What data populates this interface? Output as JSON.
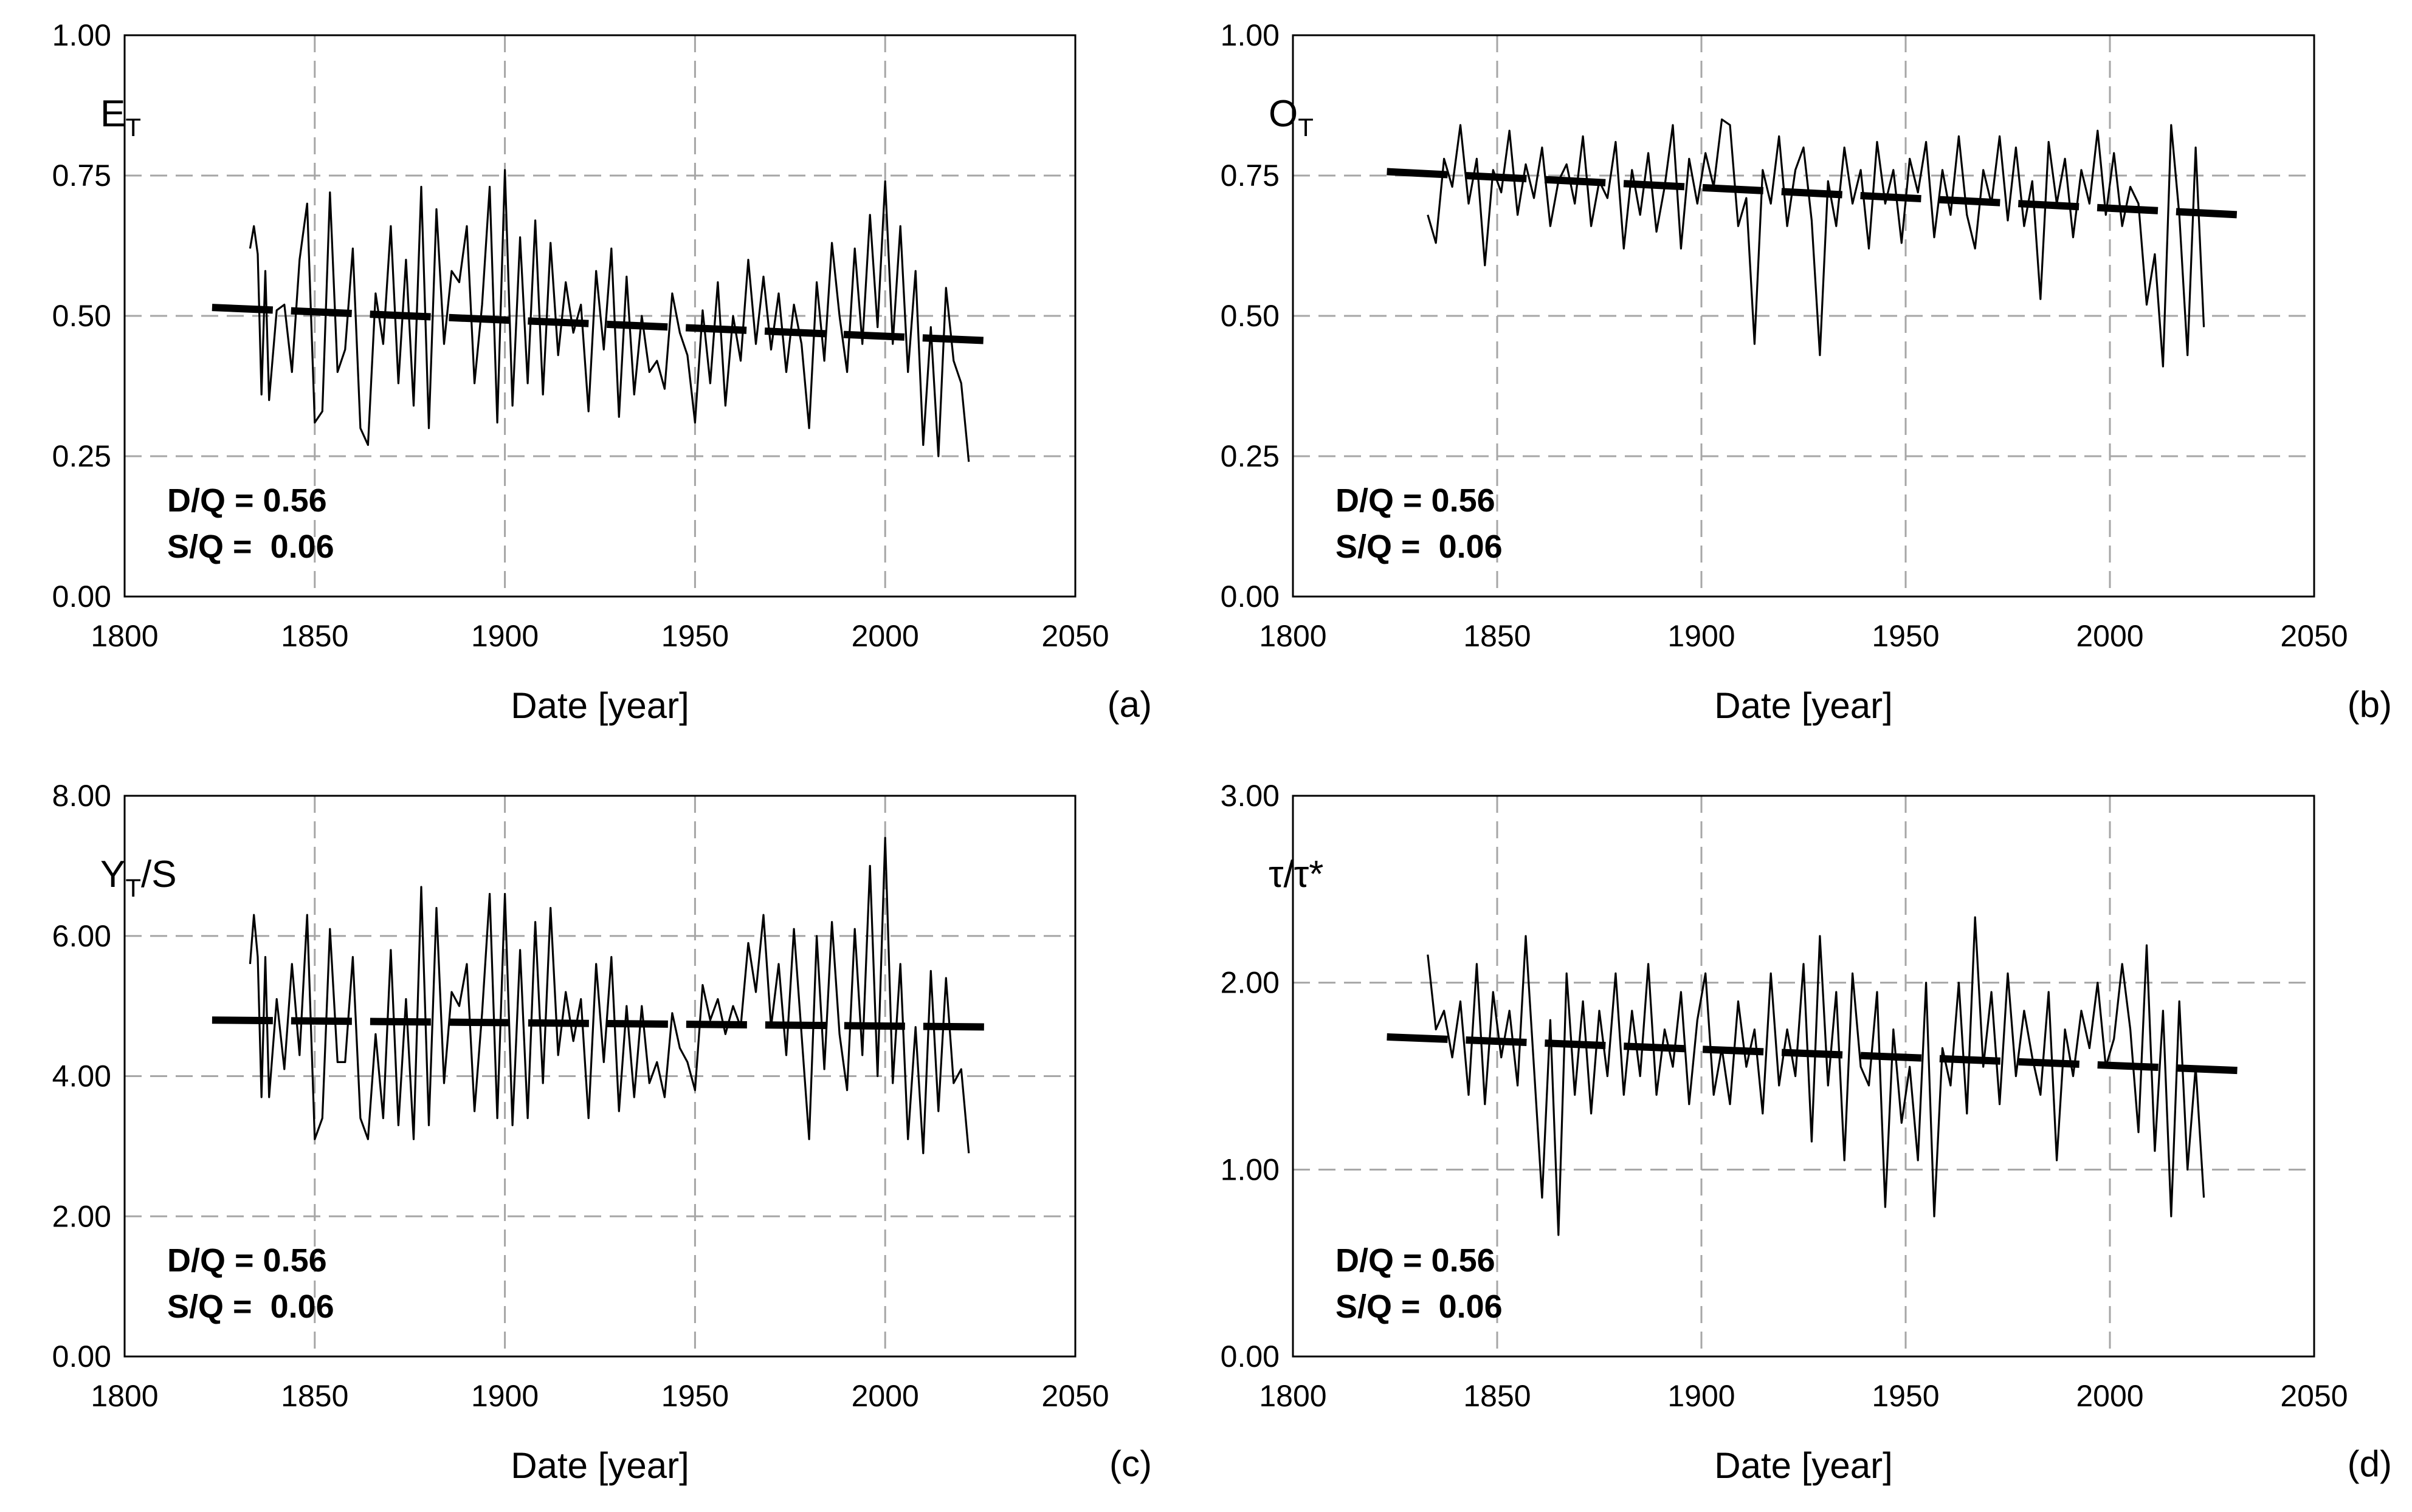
{
  "figure": {
    "panel_xlabel": "Date [year]",
    "x_ticks": [
      "1800",
      "1850",
      "1900",
      "1950",
      "2000",
      "2050"
    ]
  },
  "chart_data": [
    {
      "type": "line",
      "panel": "(a)",
      "ylabel_main": "E",
      "ylabel_sub": "T",
      "ylabel_rest": "",
      "xlabel": "Date [year]",
      "xlim": [
        1800,
        2050
      ],
      "ylim": [
        0,
        1
      ],
      "y_ticks": [
        "0.00",
        "0.25",
        "0.50",
        "0.75",
        "1.00"
      ],
      "grid": true,
      "annotation": [
        "D/Q = 0.56",
        "S/Q =  0.06"
      ],
      "series": [
        {
          "name": "annual",
          "style": "thin",
          "x": [
            1833,
            1834,
            1835,
            1836,
            1837,
            1838,
            1840,
            1842,
            1844,
            1846,
            1848,
            1850,
            1852,
            1854,
            1856,
            1858,
            1860,
            1862,
            1864,
            1866,
            1868,
            1870,
            1872,
            1874,
            1876,
            1878,
            1880,
            1882,
            1884,
            1886,
            1888,
            1890,
            1892,
            1894,
            1896,
            1898,
            1900,
            1902,
            1904,
            1906,
            1908,
            1910,
            1912,
            1914,
            1916,
            1918,
            1920,
            1922,
            1924,
            1926,
            1928,
            1930,
            1932,
            1934,
            1936,
            1938,
            1940,
            1942,
            1944,
            1946,
            1948,
            1950,
            1952,
            1954,
            1956,
            1958,
            1960,
            1962,
            1964,
            1966,
            1968,
            1970,
            1972,
            1974,
            1976,
            1978,
            1980,
            1982,
            1984,
            1986,
            1988,
            1990,
            1992,
            1994,
            1996,
            1998,
            2000,
            2002,
            2004,
            2006,
            2008,
            2010,
            2012,
            2014,
            2016,
            2018,
            2020,
            2022
          ],
          "y": [
            0.62,
            0.66,
            0.61,
            0.36,
            0.58,
            0.35,
            0.51,
            0.52,
            0.4,
            0.6,
            0.7,
            0.31,
            0.33,
            0.72,
            0.4,
            0.44,
            0.62,
            0.3,
            0.27,
            0.54,
            0.45,
            0.66,
            0.38,
            0.6,
            0.34,
            0.73,
            0.3,
            0.69,
            0.45,
            0.58,
            0.56,
            0.66,
            0.38,
            0.52,
            0.73,
            0.31,
            0.76,
            0.34,
            0.64,
            0.38,
            0.67,
            0.36,
            0.63,
            0.43,
            0.56,
            0.47,
            0.52,
            0.33,
            0.58,
            0.44,
            0.62,
            0.32,
            0.57,
            0.36,
            0.5,
            0.4,
            0.42,
            0.37,
            0.54,
            0.47,
            0.43,
            0.31,
            0.51,
            0.38,
            0.56,
            0.34,
            0.5,
            0.42,
            0.6,
            0.45,
            0.57,
            0.44,
            0.54,
            0.4,
            0.52,
            0.45,
            0.3,
            0.56,
            0.42,
            0.63,
            0.5,
            0.4,
            0.62,
            0.45,
            0.68,
            0.48,
            0.74,
            0.45,
            0.66,
            0.4,
            0.58,
            0.27,
            0.48,
            0.25,
            0.55,
            0.42,
            0.38,
            0.24
          ]
        },
        {
          "name": "trend",
          "style": "thick-dashed",
          "x": [
            1823,
            2030
          ],
          "y": [
            0.515,
            0.455
          ]
        }
      ]
    },
    {
      "type": "line",
      "panel": "(b)",
      "ylabel_main": "O",
      "ylabel_sub": "T",
      "ylabel_rest": "",
      "xlabel": "Date [year]",
      "xlim": [
        1800,
        2050
      ],
      "ylim": [
        0,
        1
      ],
      "y_ticks": [
        "0.00",
        "0.25",
        "0.50",
        "0.75",
        "1.00"
      ],
      "grid": true,
      "annotation": [
        "D/Q = 0.56",
        "S/Q =  0.06"
      ],
      "series": [
        {
          "name": "annual",
          "style": "thin",
          "x": [
            1833,
            1835,
            1837,
            1839,
            1841,
            1843,
            1845,
            1847,
            1849,
            1851,
            1853,
            1855,
            1857,
            1859,
            1861,
            1863,
            1865,
            1867,
            1869,
            1871,
            1873,
            1875,
            1877,
            1879,
            1881,
            1883,
            1885,
            1887,
            1889,
            1891,
            1893,
            1895,
            1897,
            1899,
            1901,
            1903,
            1905,
            1907,
            1909,
            1911,
            1913,
            1915,
            1917,
            1919,
            1921,
            1923,
            1925,
            1927,
            1929,
            1931,
            1933,
            1935,
            1937,
            1939,
            1941,
            1943,
            1945,
            1947,
            1949,
            1951,
            1953,
            1955,
            1957,
            1959,
            1961,
            1963,
            1965,
            1967,
            1969,
            1971,
            1973,
            1975,
            1977,
            1979,
            1981,
            1983,
            1985,
            1987,
            1989,
            1991,
            1993,
            1995,
            1997,
            1999,
            2001,
            2003,
            2005,
            2007,
            2009,
            2011,
            2013,
            2015,
            2017,
            2019,
            2021,
            2023
          ],
          "y": [
            0.68,
            0.63,
            0.78,
            0.73,
            0.84,
            0.7,
            0.78,
            0.59,
            0.76,
            0.72,
            0.83,
            0.68,
            0.77,
            0.71,
            0.8,
            0.66,
            0.74,
            0.77,
            0.7,
            0.82,
            0.66,
            0.74,
            0.71,
            0.81,
            0.62,
            0.76,
            0.68,
            0.79,
            0.65,
            0.73,
            0.84,
            0.62,
            0.78,
            0.7,
            0.79,
            0.73,
            0.85,
            0.84,
            0.66,
            0.71,
            0.45,
            0.76,
            0.7,
            0.82,
            0.66,
            0.76,
            0.8,
            0.67,
            0.43,
            0.74,
            0.66,
            0.8,
            0.7,
            0.76,
            0.62,
            0.81,
            0.7,
            0.76,
            0.63,
            0.78,
            0.72,
            0.81,
            0.64,
            0.76,
            0.68,
            0.82,
            0.68,
            0.62,
            0.76,
            0.7,
            0.82,
            0.67,
            0.8,
            0.66,
            0.74,
            0.53,
            0.81,
            0.7,
            0.78,
            0.64,
            0.76,
            0.7,
            0.83,
            0.68,
            0.79,
            0.66,
            0.73,
            0.7,
            0.52,
            0.61,
            0.41,
            0.84,
            0.68,
            0.43,
            0.8,
            0.48
          ]
        },
        {
          "name": "trend",
          "style": "thick-dashed",
          "x": [
            1823,
            2032
          ],
          "y": [
            0.757,
            0.68
          ]
        }
      ]
    },
    {
      "type": "line",
      "panel": "(c)",
      "ylabel_main": "Y",
      "ylabel_sub": "T",
      "ylabel_rest": "/S",
      "xlabel": "Date [year]",
      "xlim": [
        1800,
        2050
      ],
      "ylim": [
        0,
        8
      ],
      "y_ticks": [
        "0.00",
        "2.00",
        "4.00",
        "6.00",
        "8.00"
      ],
      "grid": true,
      "annotation": [
        "D/Q = 0.56",
        "S/Q =  0.06"
      ],
      "series": [
        {
          "name": "annual",
          "style": "thin",
          "x": [
            1833,
            1834,
            1835,
            1836,
            1837,
            1838,
            1840,
            1842,
            1844,
            1846,
            1848,
            1850,
            1852,
            1854,
            1856,
            1858,
            1860,
            1862,
            1864,
            1866,
            1868,
            1870,
            1872,
            1874,
            1876,
            1878,
            1880,
            1882,
            1884,
            1886,
            1888,
            1890,
            1892,
            1894,
            1896,
            1898,
            1900,
            1902,
            1904,
            1906,
            1908,
            1910,
            1912,
            1914,
            1916,
            1918,
            1920,
            1922,
            1924,
            1926,
            1928,
            1930,
            1932,
            1934,
            1936,
            1938,
            1940,
            1942,
            1944,
            1946,
            1948,
            1950,
            1952,
            1954,
            1956,
            1958,
            1960,
            1962,
            1964,
            1966,
            1968,
            1970,
            1972,
            1974,
            1976,
            1978,
            1980,
            1982,
            1984,
            1986,
            1988,
            1990,
            1992,
            1994,
            1996,
            1998,
            2000,
            2002,
            2004,
            2006,
            2008,
            2010,
            2012,
            2014,
            2016,
            2018,
            2020,
            2022
          ],
          "y": [
            5.6,
            6.3,
            5.7,
            3.7,
            5.7,
            3.7,
            5.1,
            4.1,
            5.6,
            4.3,
            6.3,
            3.1,
            3.4,
            6.1,
            4.2,
            4.2,
            5.7,
            3.4,
            3.1,
            4.6,
            3.4,
            5.8,
            3.3,
            5.1,
            3.1,
            6.7,
            3.3,
            6.4,
            3.9,
            5.2,
            5.0,
            5.6,
            3.5,
            4.9,
            6.6,
            3.4,
            6.6,
            3.3,
            5.8,
            3.4,
            6.2,
            3.9,
            6.4,
            4.3,
            5.2,
            4.5,
            5.1,
            3.4,
            5.6,
            4.2,
            5.7,
            3.5,
            5.0,
            3.7,
            5.0,
            3.9,
            4.2,
            3.7,
            4.9,
            4.4,
            4.2,
            3.8,
            5.3,
            4.8,
            5.1,
            4.6,
            5.0,
            4.7,
            5.9,
            5.2,
            6.3,
            4.7,
            5.6,
            4.3,
            6.1,
            4.6,
            3.1,
            6.0,
            4.1,
            6.2,
            4.6,
            3.8,
            6.1,
            4.3,
            7.0,
            4.0,
            7.4,
            3.9,
            5.6,
            3.1,
            4.7,
            2.9,
            5.5,
            3.5,
            5.4,
            3.9,
            4.1,
            2.9
          ]
        },
        {
          "name": "trend",
          "style": "thick-dashed",
          "x": [
            1823,
            2030
          ],
          "y": [
            4.8,
            4.7
          ]
        }
      ]
    },
    {
      "type": "line",
      "panel": "(d)",
      "ylabel_main": "τ/τ*",
      "ylabel_sub": "",
      "ylabel_rest": "",
      "xlabel": "Date [year]",
      "xlim": [
        1800,
        2050
      ],
      "ylim": [
        0,
        3
      ],
      "y_ticks": [
        "0.00",
        "1.00",
        "2.00",
        "3.00"
      ],
      "grid": true,
      "annotation": [
        "D/Q = 0.56",
        "S/Q =  0.06"
      ],
      "series": [
        {
          "name": "annual",
          "style": "thin",
          "x": [
            1833,
            1835,
            1837,
            1839,
            1841,
            1843,
            1845,
            1847,
            1849,
            1851,
            1853,
            1855,
            1857,
            1859,
            1861,
            1863,
            1865,
            1867,
            1869,
            1871,
            1873,
            1875,
            1877,
            1879,
            1881,
            1883,
            1885,
            1887,
            1889,
            1891,
            1893,
            1895,
            1897,
            1899,
            1901,
            1903,
            1905,
            1907,
            1909,
            1911,
            1913,
            1915,
            1917,
            1919,
            1921,
            1923,
            1925,
            1927,
            1929,
            1931,
            1933,
            1935,
            1937,
            1939,
            1941,
            1943,
            1945,
            1947,
            1949,
            1951,
            1953,
            1955,
            1957,
            1959,
            1961,
            1963,
            1965,
            1967,
            1969,
            1971,
            1973,
            1975,
            1977,
            1979,
            1981,
            1983,
            1985,
            1987,
            1989,
            1991,
            1993,
            1995,
            1997,
            1999,
            2001,
            2003,
            2005,
            2007,
            2009,
            2011,
            2013,
            2015,
            2017,
            2019,
            2021,
            2023
          ],
          "y": [
            2.15,
            1.75,
            1.85,
            1.6,
            1.9,
            1.4,
            2.1,
            1.35,
            1.95,
            1.6,
            1.85,
            1.45,
            2.25,
            1.55,
            0.85,
            1.8,
            0.65,
            2.05,
            1.4,
            1.9,
            1.3,
            1.85,
            1.5,
            2.05,
            1.4,
            1.85,
            1.5,
            2.1,
            1.4,
            1.75,
            1.55,
            1.95,
            1.35,
            1.8,
            2.05,
            1.4,
            1.65,
            1.35,
            1.9,
            1.55,
            1.75,
            1.3,
            2.05,
            1.45,
            1.75,
            1.5,
            2.1,
            1.15,
            2.25,
            1.45,
            1.95,
            1.05,
            2.05,
            1.55,
            1.45,
            1.95,
            0.8,
            1.75,
            1.25,
            1.55,
            1.05,
            2.0,
            0.75,
            1.65,
            1.45,
            2.0,
            1.3,
            2.35,
            1.55,
            1.95,
            1.35,
            2.05,
            1.5,
            1.85,
            1.6,
            1.4,
            1.95,
            1.05,
            1.75,
            1.5,
            1.85,
            1.65,
            2.0,
            1.55,
            1.7,
            2.1,
            1.75,
            1.2,
            2.2,
            1.1,
            1.85,
            0.75,
            1.9,
            1.0,
            1.55,
            0.85
          ]
        },
        {
          "name": "trend",
          "style": "thick-dashed",
          "x": [
            1823,
            2032
          ],
          "y": [
            1.71,
            1.53
          ]
        }
      ]
    }
  ]
}
